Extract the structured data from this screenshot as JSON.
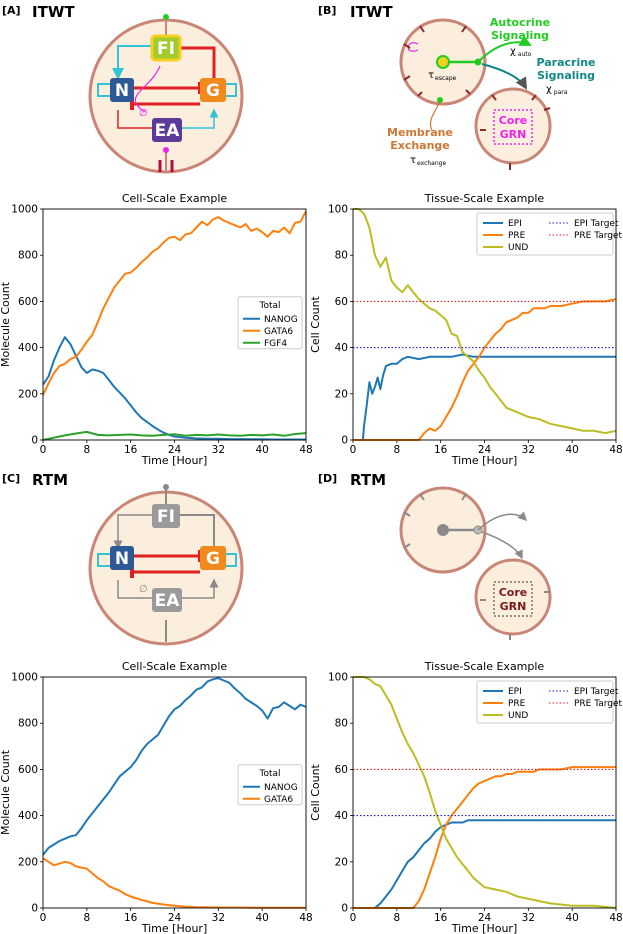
{
  "panels": [
    {
      "label": "[A]",
      "model": "ITWT"
    },
    {
      "label": "[B]",
      "model": "ITWT"
    },
    {
      "label": "[C]",
      "model": "RTM"
    },
    {
      "label": "[D]",
      "model": "RTM"
    }
  ],
  "diagram": {
    "nodes": {
      "fi": "FI",
      "n": "N",
      "g": "G",
      "ea": "EA"
    },
    "empty_set": "∅",
    "tissue": {
      "autocrine": [
        "Autocrine",
        "Signaling"
      ],
      "chi_auto": "χ",
      "chi_auto_sub": "auto",
      "paracrine": [
        "Paracrine",
        "Signaling"
      ],
      "chi_para": "χ",
      "chi_para_sub": "para",
      "tau_escape": "τ",
      "tau_escape_sub": "escape",
      "membrane": [
        "Membrane",
        "Exchange"
      ],
      "tau_exchange": "τ",
      "tau_exchange_sub": "exchange",
      "core": [
        "Core",
        "GRN"
      ]
    }
  },
  "colors": {
    "nanog": "#1f77b4",
    "gata6": "#ff7f0e",
    "fgf4": "#2ca02c",
    "und": "#bcbd22",
    "epi_target": "#1c1ccf",
    "pre_target": "#e02020",
    "node_n": "#2d5a96",
    "node_g": "#f08a1c",
    "node_fi": "#a2cc2c",
    "node_ea": "#5b3a98",
    "cell_fill": "#fbeedd",
    "cell_border": "#c98575",
    "autocrine": "#22cc22",
    "paracrine": "#118888",
    "membrane": "#cc7733",
    "core": "#ee22ee",
    "core_rtm": "#7a1a1a",
    "grey": "#8a8a8a",
    "link": "#33c4d4",
    "inhibit": "#e02020"
  },
  "chart_data": [
    {
      "id": "A",
      "type": "line",
      "title": "Cell-Scale Example",
      "xlabel": "Time [Hour]",
      "ylabel": "Molecule Count",
      "xlim": [
        0,
        48
      ],
      "ylim": [
        0,
        1000
      ],
      "xticks": [
        0,
        8,
        16,
        24,
        32,
        40,
        48
      ],
      "yticks": [
        0,
        200,
        400,
        600,
        800,
        1000
      ],
      "legend_title": "Total",
      "legend_position": "center-right",
      "series": [
        {
          "name": "NANOG",
          "color": "#1f77b4",
          "x": [
            0,
            1,
            2,
            3,
            4,
            5,
            6,
            7,
            8,
            9,
            10,
            11,
            12,
            13,
            14,
            15,
            16,
            17,
            18,
            19,
            20,
            21,
            22,
            23,
            24,
            26,
            28,
            30,
            32,
            34,
            36,
            38,
            40,
            42,
            44,
            46,
            48
          ],
          "y": [
            240,
            275,
            345,
            400,
            445,
            415,
            365,
            315,
            290,
            305,
            300,
            290,
            260,
            230,
            205,
            180,
            150,
            120,
            95,
            78,
            60,
            45,
            32,
            22,
            15,
            10,
            7,
            5,
            5,
            4,
            4,
            3,
            3,
            2,
            2,
            2,
            2
          ]
        },
        {
          "name": "GATA6",
          "color": "#ff7f0e",
          "x": [
            0,
            1,
            2,
            3,
            4,
            5,
            6,
            7,
            8,
            9,
            10,
            11,
            12,
            13,
            14,
            15,
            16,
            17,
            18,
            19,
            20,
            21,
            22,
            23,
            24,
            25,
            26,
            27,
            28,
            29,
            30,
            31,
            32,
            33,
            34,
            35,
            36,
            37,
            38,
            39,
            40,
            41,
            42,
            43,
            44,
            45,
            46,
            47,
            48
          ],
          "y": [
            195,
            245,
            290,
            320,
            330,
            350,
            360,
            390,
            425,
            455,
            510,
            570,
            615,
            660,
            690,
            720,
            725,
            745,
            770,
            790,
            815,
            830,
            855,
            875,
            880,
            865,
            890,
            895,
            920,
            945,
            930,
            955,
            965,
            950,
            940,
            930,
            920,
            935,
            905,
            915,
            900,
            880,
            905,
            900,
            920,
            895,
            940,
            945,
            990
          ]
        },
        {
          "name": "FGF4",
          "color": "#2ca02c",
          "x": [
            0,
            2,
            4,
            6,
            8,
            10,
            12,
            14,
            16,
            18,
            20,
            22,
            24,
            26,
            28,
            30,
            32,
            34,
            36,
            38,
            40,
            42,
            44,
            46,
            48
          ],
          "y": [
            0,
            10,
            20,
            28,
            35,
            22,
            20,
            22,
            24,
            20,
            18,
            22,
            25,
            18,
            22,
            20,
            24,
            20,
            18,
            22,
            20,
            24,
            18,
            26,
            30
          ]
        }
      ]
    },
    {
      "id": "B",
      "type": "line",
      "title": "Tissue-Scale Example",
      "xlabel": "Time [Hour]",
      "ylabel": "Cell Count",
      "xlim": [
        0,
        48
      ],
      "ylim": [
        0,
        100
      ],
      "xticks": [
        0,
        8,
        16,
        24,
        32,
        40,
        48
      ],
      "yticks": [
        0,
        20,
        40,
        60,
        80,
        100
      ],
      "legend_position": "top-right",
      "series": [
        {
          "name": "EPI",
          "color": "#1f77b4",
          "x": [
            0,
            1.8,
            2,
            2.5,
            3,
            3.5,
            4,
            4.5,
            5,
            5.5,
            6,
            7,
            8,
            9,
            10,
            12,
            14,
            16,
            18,
            20,
            22,
            24,
            26,
            28,
            32,
            36,
            40,
            44,
            48
          ],
          "y": [
            0,
            0,
            6,
            15,
            25,
            20,
            23,
            27,
            22,
            28,
            32,
            33,
            33,
            35,
            36,
            35,
            36,
            36,
            36,
            37,
            36,
            36,
            36,
            36,
            36,
            36,
            36,
            36,
            36
          ]
        },
        {
          "name": "PRE",
          "color": "#ff7f0e",
          "x": [
            0,
            12,
            13,
            14,
            15,
            16,
            17,
            18,
            19,
            20,
            21,
            22,
            23,
            24,
            25,
            26,
            27,
            28,
            29,
            30,
            31,
            32,
            33,
            34,
            35,
            36,
            38,
            40,
            42,
            44,
            46,
            48
          ],
          "y": [
            0,
            0,
            3,
            5,
            4,
            6,
            10,
            14,
            19,
            25,
            30,
            33,
            36,
            40,
            43,
            46,
            48,
            51,
            52,
            53,
            55,
            55,
            57,
            57,
            57,
            58,
            58,
            59,
            60,
            60,
            60,
            61
          ]
        },
        {
          "name": "UND",
          "color": "#bcbd22",
          "x": [
            0,
            1,
            2,
            3,
            4,
            5,
            6,
            7,
            8,
            9,
            10,
            11,
            12,
            13,
            14,
            15,
            16,
            17,
            18,
            19,
            20,
            21,
            22,
            23,
            24,
            25,
            26,
            27,
            28,
            29,
            30,
            32,
            34,
            36,
            38,
            40,
            42,
            44,
            46,
            48
          ],
          "y": [
            100,
            100,
            98,
            92,
            80,
            75,
            79,
            69,
            66,
            64,
            67,
            64,
            61,
            59,
            57,
            56,
            54,
            52,
            46,
            45,
            38,
            36,
            34,
            30,
            27,
            23,
            20,
            17,
            14,
            13,
            12,
            10,
            9,
            7,
            6,
            5,
            4,
            4,
            3,
            4
          ]
        },
        {
          "name": "EPI Target",
          "color": "#1c1ccf",
          "style": "dotted",
          "x": [
            0,
            48
          ],
          "y": [
            40,
            40
          ]
        },
        {
          "name": "PRE Target",
          "color": "#e02020",
          "style": "dotted",
          "x": [
            0,
            48
          ],
          "y": [
            60,
            60
          ]
        }
      ]
    },
    {
      "id": "C",
      "type": "line",
      "title": "Cell-Scale Example",
      "xlabel": "Time [Hour]",
      "ylabel": "Molecule Count",
      "xlim": [
        0,
        48
      ],
      "ylim": [
        0,
        1000
      ],
      "xticks": [
        0,
        8,
        16,
        24,
        32,
        40,
        48
      ],
      "yticks": [
        0,
        200,
        400,
        600,
        800,
        1000
      ],
      "legend_title": "Total",
      "legend_position": "center-right",
      "series": [
        {
          "name": "NANOG",
          "color": "#1f77b4",
          "x": [
            0,
            1,
            2,
            3,
            4,
            5,
            6,
            7,
            8,
            9,
            10,
            11,
            12,
            13,
            14,
            15,
            16,
            17,
            18,
            19,
            20,
            21,
            22,
            23,
            24,
            25,
            26,
            27,
            28,
            29,
            30,
            31,
            32,
            33,
            34,
            35,
            36,
            37,
            38,
            39,
            40,
            41,
            42,
            43,
            44,
            45,
            46,
            47,
            48
          ],
          "y": [
            230,
            260,
            275,
            290,
            300,
            310,
            315,
            345,
            380,
            410,
            440,
            470,
            500,
            535,
            570,
            590,
            610,
            640,
            680,
            710,
            730,
            750,
            790,
            830,
            860,
            875,
            900,
            920,
            945,
            955,
            980,
            990,
            995,
            985,
            975,
            950,
            930,
            905,
            890,
            875,
            855,
            820,
            865,
            870,
            890,
            875,
            860,
            880,
            870
          ]
        },
        {
          "name": "GATA6",
          "color": "#ff7f0e",
          "x": [
            0,
            2,
            4,
            5,
            6,
            7,
            8,
            9,
            10,
            11,
            12,
            13,
            14,
            15,
            16,
            18,
            20,
            22,
            24,
            26,
            28,
            30,
            32,
            36,
            40,
            44,
            48
          ],
          "y": [
            215,
            185,
            200,
            195,
            180,
            175,
            170,
            150,
            130,
            115,
            95,
            85,
            75,
            60,
            50,
            35,
            22,
            15,
            10,
            6,
            4,
            3,
            2,
            2,
            1,
            1,
            1
          ]
        }
      ]
    },
    {
      "id": "D",
      "type": "line",
      "title": "Tissue-Scale Example",
      "xlabel": "Time [Hour]",
      "ylabel": "Cell Count",
      "xlim": [
        0,
        48
      ],
      "ylim": [
        0,
        100
      ],
      "xticks": [
        0,
        8,
        16,
        24,
        32,
        40,
        48
      ],
      "yticks": [
        0,
        20,
        40,
        60,
        80,
        100
      ],
      "legend_position": "top-right",
      "series": [
        {
          "name": "EPI",
          "color": "#1f77b4",
          "x": [
            0,
            4,
            5,
            6,
            7,
            8,
            9,
            10,
            11,
            12,
            13,
            14,
            15,
            16,
            17,
            18,
            19,
            20,
            21,
            22,
            24,
            26,
            28,
            32,
            36,
            40,
            44,
            48
          ],
          "y": [
            0,
            0,
            2,
            5,
            8,
            12,
            16,
            20,
            22,
            25,
            28,
            30,
            33,
            35,
            36,
            37,
            37,
            37,
            38,
            38,
            38,
            38,
            38,
            38,
            38,
            38,
            38,
            38
          ]
        },
        {
          "name": "PRE",
          "color": "#ff7f0e",
          "x": [
            0,
            11,
            12,
            13,
            14,
            15,
            16,
            17,
            18,
            19,
            20,
            21,
            22,
            23,
            24,
            25,
            26,
            27,
            28,
            29,
            30,
            31,
            32,
            33,
            34,
            36,
            38,
            40,
            42,
            44,
            46,
            48
          ],
          "y": [
            0,
            0,
            3,
            8,
            15,
            22,
            30,
            36,
            40,
            43,
            46,
            49,
            52,
            54,
            55,
            56,
            57,
            57,
            58,
            58,
            59,
            59,
            59,
            59,
            60,
            60,
            60,
            61,
            61,
            61,
            61,
            61
          ]
        },
        {
          "name": "UND",
          "color": "#bcbd22",
          "x": [
            0,
            2,
            3,
            4,
            5,
            6,
            7,
            8,
            9,
            10,
            11,
            12,
            13,
            14,
            15,
            16,
            17,
            18,
            19,
            20,
            21,
            22,
            23,
            24,
            26,
            28,
            30,
            32,
            34,
            36,
            40,
            44,
            48
          ],
          "y": [
            100,
            100,
            99,
            97,
            96,
            92,
            88,
            82,
            76,
            71,
            67,
            62,
            57,
            50,
            42,
            36,
            30,
            26,
            22,
            19,
            16,
            13,
            11,
            9,
            8,
            7,
            5,
            4,
            3,
            2,
            1,
            1,
            0
          ]
        },
        {
          "name": "EPI Target",
          "color": "#1c1ccf",
          "style": "dotted",
          "x": [
            0,
            48
          ],
          "y": [
            40,
            40
          ]
        },
        {
          "name": "PRE Target",
          "color": "#e02020",
          "style": "dotted",
          "x": [
            0,
            48
          ],
          "y": [
            60,
            60
          ]
        }
      ]
    }
  ]
}
